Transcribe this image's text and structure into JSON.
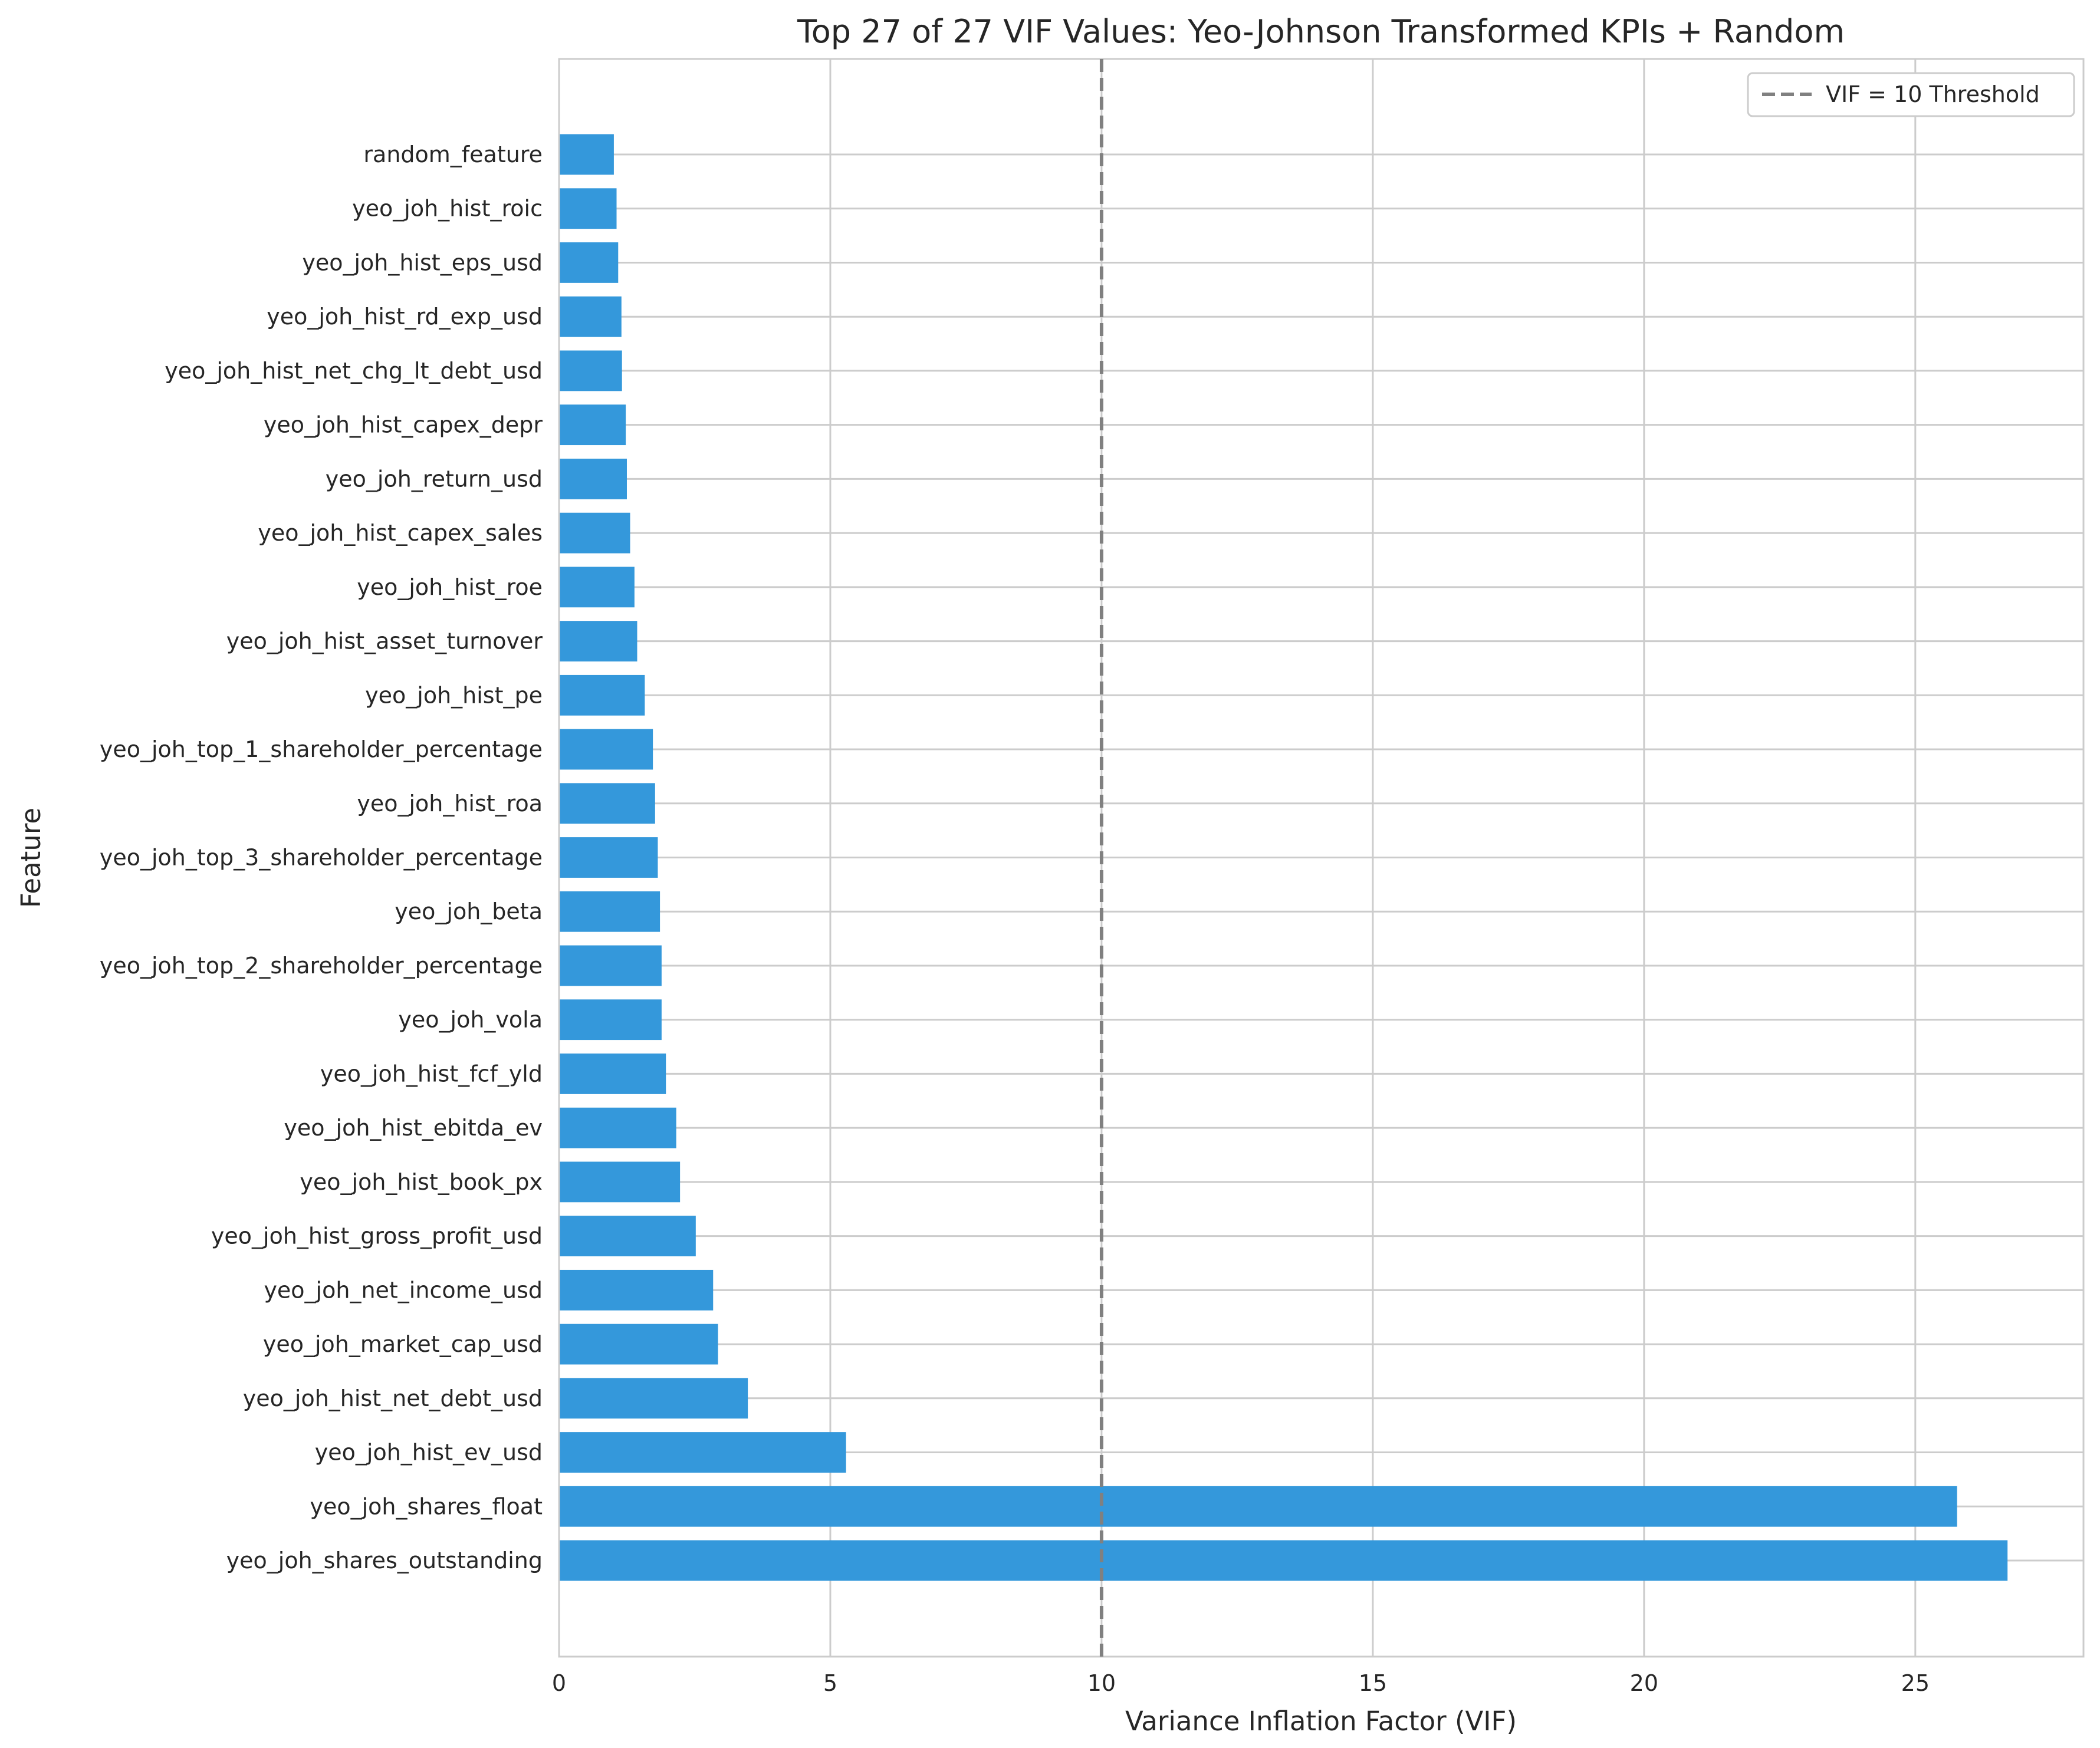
{
  "chart_data": {
    "type": "bar",
    "orientation": "horizontal",
    "title": "Top 27 of 27 VIF Values: Yeo-Johnson Transformed KPIs + Random",
    "xlabel": "Variance Inflation Factor (VIF)",
    "ylabel": "Feature",
    "xlim": [
      0,
      28.1
    ],
    "xticks": [
      0,
      5,
      10,
      15,
      20,
      25
    ],
    "grid": true,
    "legend_position": "top-right",
    "bar_color": "#3498db",
    "threshold": {
      "value": 10,
      "label": "VIF = 10 Threshold",
      "color": "#808080",
      "style": "dashed"
    },
    "categories": [
      "random_feature",
      "yeo_joh_hist_roic",
      "yeo_joh_hist_eps_usd",
      "yeo_joh_hist_rd_exp_usd",
      "yeo_joh_hist_net_chg_lt_debt_usd",
      "yeo_joh_hist_capex_depr",
      "yeo_joh_return_usd",
      "yeo_joh_hist_capex_sales",
      "yeo_joh_hist_roe",
      "yeo_joh_hist_asset_turnover",
      "yeo_joh_hist_pe",
      "yeo_joh_top_1_shareholder_percentage",
      "yeo_joh_hist_roa",
      "yeo_joh_top_3_shareholder_percentage",
      "yeo_joh_beta",
      "yeo_joh_top_2_shareholder_percentage",
      "yeo_joh_vola",
      "yeo_joh_hist_fcf_yld",
      "yeo_joh_hist_ebitda_ev",
      "yeo_joh_hist_book_px",
      "yeo_joh_hist_gross_profit_usd",
      "yeo_joh_net_income_usd",
      "yeo_joh_market_cap_usd",
      "yeo_joh_hist_net_debt_usd",
      "yeo_joh_hist_ev_usd",
      "yeo_joh_shares_float",
      "yeo_joh_shares_outstanding"
    ],
    "values": [
      1.01,
      1.06,
      1.09,
      1.15,
      1.16,
      1.23,
      1.25,
      1.31,
      1.39,
      1.44,
      1.58,
      1.73,
      1.77,
      1.82,
      1.86,
      1.89,
      1.89,
      1.97,
      2.16,
      2.23,
      2.52,
      2.84,
      2.93,
      3.48,
      5.29,
      25.77,
      26.7
    ]
  }
}
